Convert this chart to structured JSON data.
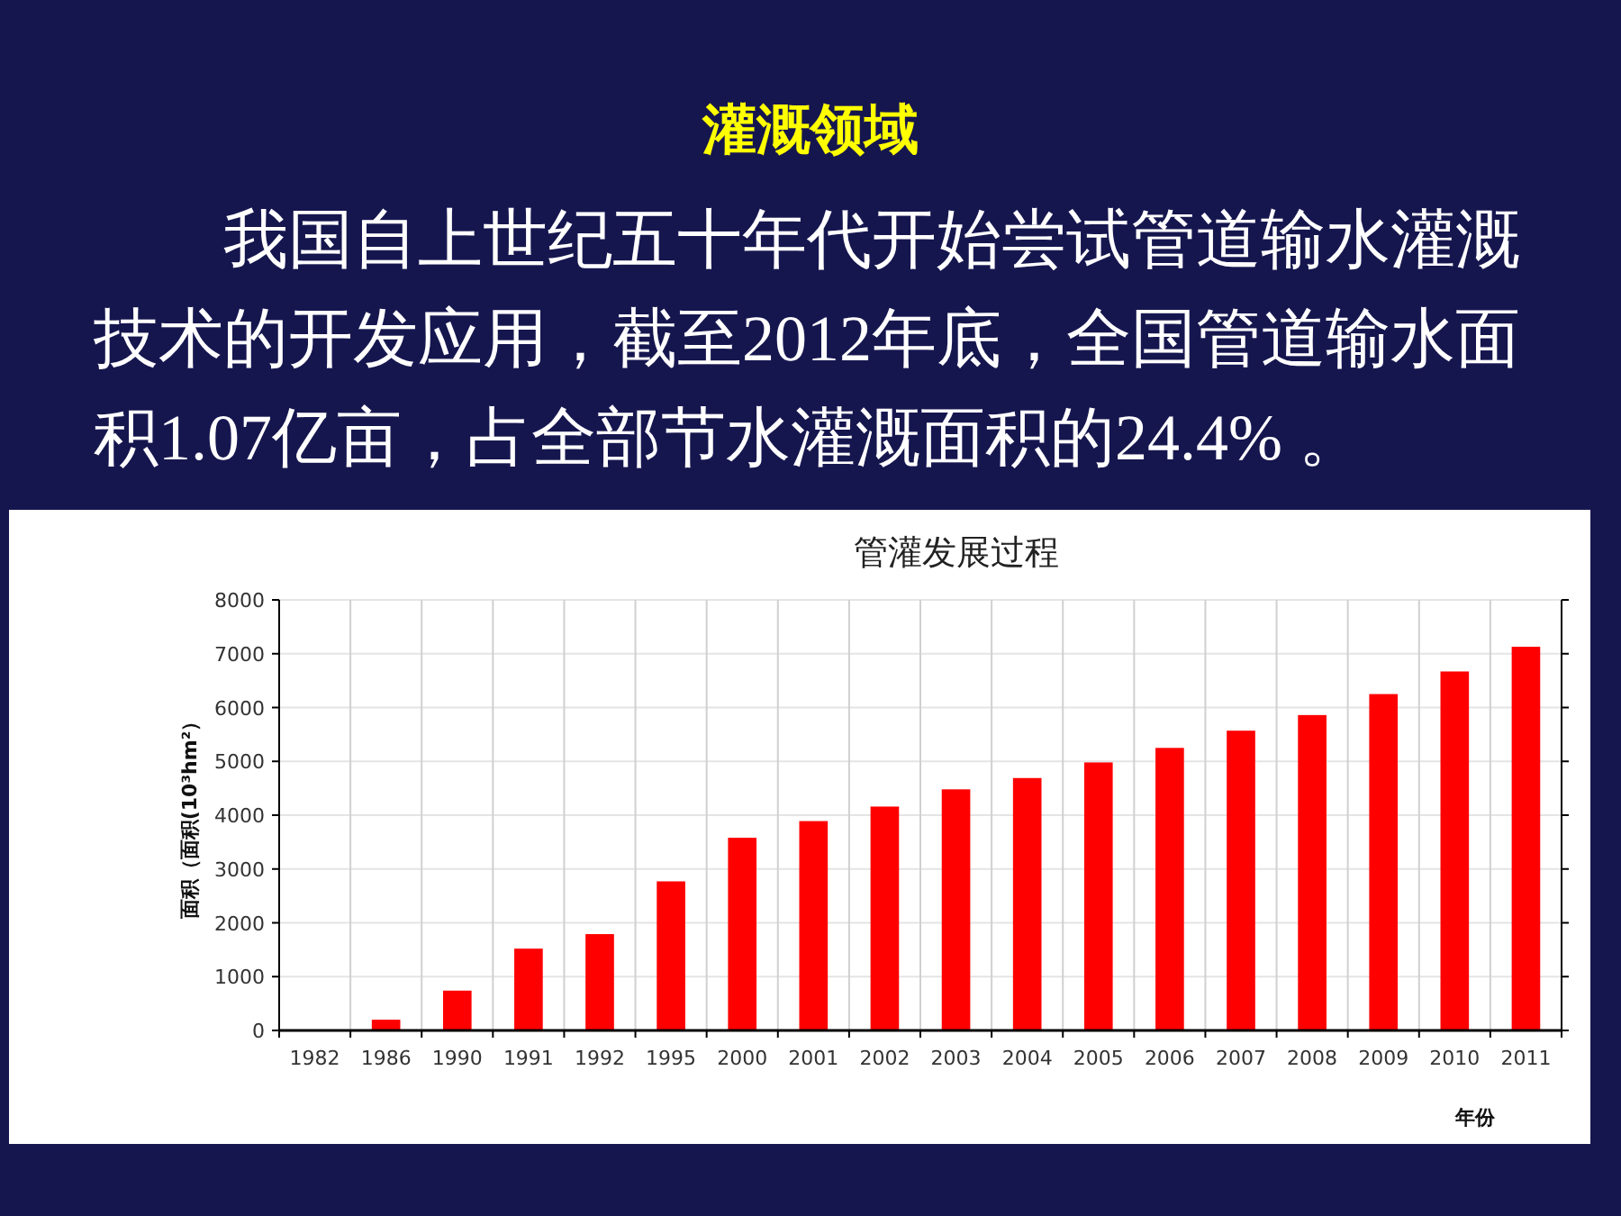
{
  "chart_data": {
    "type": "bar",
    "title": "管灌发展过程",
    "xlabel": "年份",
    "ylabel": "面积（面积(10³hm²）",
    "annotations": [
      "灌溉领域",
      "我国自上世纪五十年代开始尝试管道输水灌溉技术的开发应用，截至2012年底，全国管道输水面积1.07亿亩，占全部节水灌溉面积的24.4% 。"
    ],
    "categories": [
      "1982",
      "1986",
      "1990",
      "1991",
      "1992",
      "1995",
      "2000",
      "2001",
      "2002",
      "2003",
      "2004",
      "2005",
      "2006",
      "2007",
      "2008",
      "2009",
      "2010",
      "2011"
    ],
    "values": [
      0,
      200,
      740,
      1520,
      1790,
      2770,
      3580,
      3890,
      4160,
      4480,
      4690,
      4980,
      5250,
      5570,
      5860,
      6250,
      6670,
      7130
    ],
    "color": "#ff0000",
    "ylim": [
      0,
      8000
    ],
    "yticks": [
      0,
      1000,
      2000,
      3000,
      4000,
      5000,
      6000,
      7000,
      8000
    ],
    "grid": true
  }
}
